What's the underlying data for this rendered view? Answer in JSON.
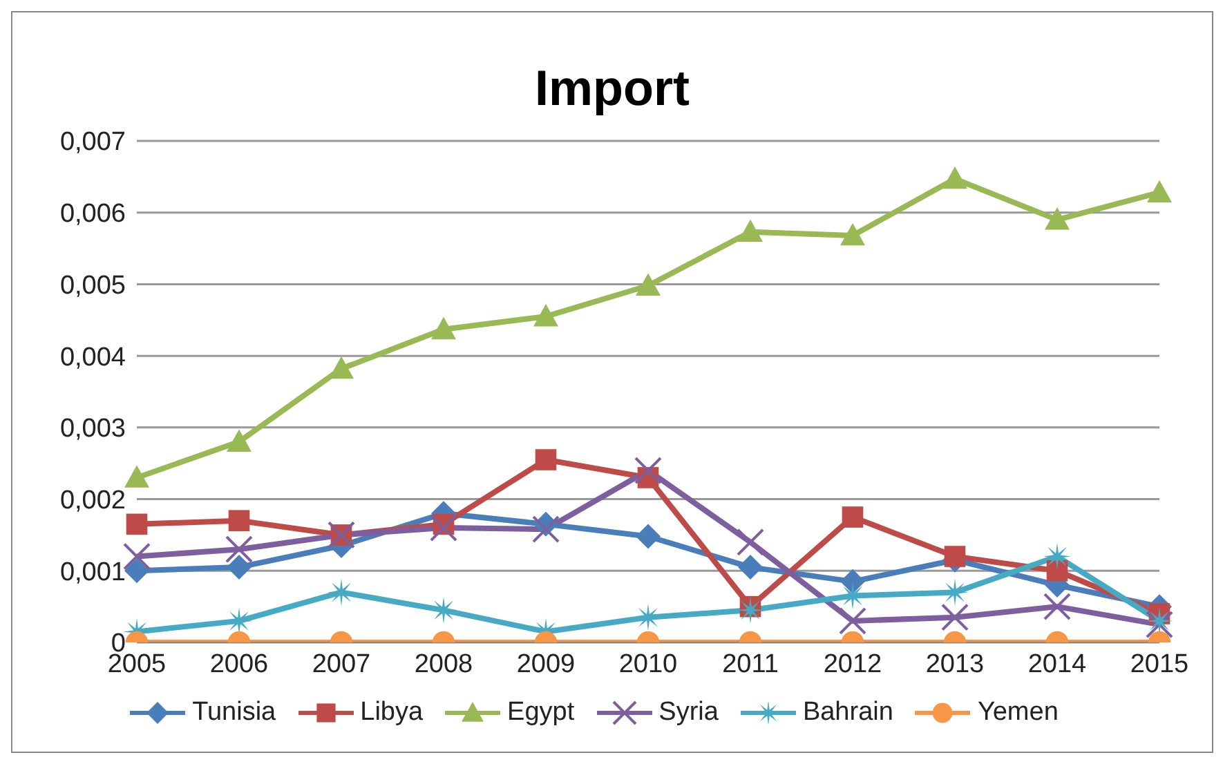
{
  "chart_data": {
    "type": "line",
    "title": "Import",
    "categories": [
      "2005",
      "2006",
      "2007",
      "2008",
      "2009",
      "2010",
      "2011",
      "2012",
      "2013",
      "2014",
      "2015"
    ],
    "series": [
      {
        "name": "Tunisia",
        "color": "#4a7ebb",
        "marker": "diamond",
        "values": [
          0.001,
          0.00105,
          0.00135,
          0.0018,
          0.00165,
          0.00148,
          0.00105,
          0.00085,
          0.00115,
          0.0008,
          0.0005
        ]
      },
      {
        "name": "Libya",
        "color": "#be4b48",
        "marker": "square",
        "values": [
          0.00165,
          0.0017,
          0.0015,
          0.00165,
          0.00255,
          0.0023,
          0.0005,
          0.00175,
          0.0012,
          0.001,
          0.0004
        ]
      },
      {
        "name": "Egypt",
        "color": "#98b954",
        "marker": "triangle",
        "values": [
          0.0023,
          0.0028,
          0.00382,
          0.00437,
          0.00455,
          0.00498,
          0.00573,
          0.00568,
          0.00647,
          0.0059,
          0.00628
        ]
      },
      {
        "name": "Syria",
        "color": "#7d5fa0",
        "marker": "cross",
        "values": [
          0.0012,
          0.0013,
          0.0015,
          0.0016,
          0.00158,
          0.0024,
          0.0014,
          0.0003,
          0.00035,
          0.0005,
          0.00025
        ]
      },
      {
        "name": "Bahrain",
        "color": "#46aac5",
        "marker": "star",
        "values": [
          0.00015,
          0.0003,
          0.0007,
          0.00045,
          0.00015,
          0.00035,
          0.00045,
          0.00065,
          0.0007,
          0.0012,
          0.0003
        ]
      },
      {
        "name": "Yemen",
        "color": "#f79646",
        "marker": "circle",
        "values": [
          0,
          0,
          0,
          0,
          0,
          0,
          0,
          0,
          0,
          0,
          0
        ]
      }
    ],
    "ylim": [
      0,
      0.007
    ],
    "yticks": [
      0,
      {
        "value": 0.001,
        "label": "0,001"
      },
      {
        "value": 0.002,
        "label": "0,002"
      },
      {
        "value": 0.003,
        "label": "0,003"
      },
      {
        "value": 0.004,
        "label": "0,004"
      },
      {
        "value": 0.005,
        "label": "0,005"
      },
      {
        "value": 0.006,
        "label": "0,006"
      },
      {
        "value": 0.007,
        "label": "0,007"
      }
    ],
    "grid": "y",
    "legend": "bottom"
  }
}
